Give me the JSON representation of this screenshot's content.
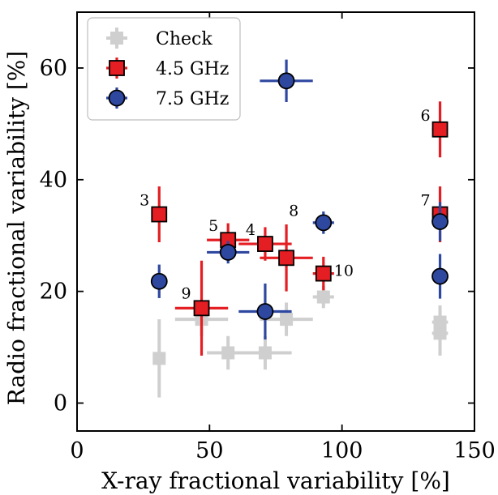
{
  "chart_data": {
    "type": "scatter",
    "xlabel": "X-ray fractional variability [%]",
    "ylabel": "Radio fractional variability [%]",
    "xlim": [
      0,
      150
    ],
    "ylim": [
      -5,
      70
    ],
    "xticks": [
      0,
      50,
      100,
      150
    ],
    "yticks": [
      0,
      20,
      40,
      60
    ],
    "grid": false,
    "legend_position": "top-left",
    "series": [
      {
        "name": "Check",
        "marker": "plus",
        "color": "#cfcfcf",
        "points": [
          {
            "x": 31,
            "y": 8,
            "xerr": 2,
            "yerr": 7
          },
          {
            "x": 47,
            "y": 15,
            "xerr": 10,
            "yerr": 3
          },
          {
            "x": 57,
            "y": 9,
            "xerr": 8,
            "yerr": 3
          },
          {
            "x": 71,
            "y": 9,
            "xerr": 10,
            "yerr": 3
          },
          {
            "x": 79,
            "y": 15,
            "xerr": 10,
            "yerr": 3
          },
          {
            "x": 93,
            "y": 19,
            "xerr": 4,
            "yerr": 2
          },
          {
            "x": 137,
            "y": 12.5,
            "xerr": 3,
            "yerr": 4
          },
          {
            "x": 137,
            "y": 14.5,
            "xerr": 3,
            "yerr": 3
          }
        ]
      },
      {
        "name": "4.5 GHz",
        "marker": "square",
        "color": "#e41e23",
        "points": [
          {
            "x": 31,
            "y": 33.8,
            "xerr": 2,
            "yerr": 5,
            "label": "3"
          },
          {
            "x": 57,
            "y": 29.2,
            "xerr": 8,
            "yerr": 3,
            "label": "5"
          },
          {
            "x": 71,
            "y": 28.5,
            "xerr": 10,
            "yerr": 3,
            "label": "4"
          },
          {
            "x": 79,
            "y": 26,
            "xerr": 10,
            "yerr": 6,
            "label": "8"
          },
          {
            "x": 47,
            "y": 17,
            "xerr": 10,
            "yerr": 8.5,
            "label": "9"
          },
          {
            "x": 93,
            "y": 23.2,
            "xerr": 4,
            "yerr": 3,
            "label": "10"
          },
          {
            "x": 137,
            "y": 49,
            "xerr": 3,
            "yerr": 5,
            "label": "6"
          },
          {
            "x": 137,
            "y": 33.8,
            "xerr": 3,
            "yerr": 5,
            "label": "7"
          }
        ]
      },
      {
        "name": "7.5 GHz",
        "marker": "circle",
        "color": "#2e48a0",
        "points": [
          {
            "x": 79,
            "y": 57.7,
            "xerr": 10,
            "yerr": 3.8
          },
          {
            "x": 31,
            "y": 21.8,
            "xerr": 2,
            "yerr": 3
          },
          {
            "x": 57,
            "y": 27,
            "xerr": 8,
            "yerr": 2
          },
          {
            "x": 71,
            "y": 16.4,
            "xerr": 10,
            "yerr": 5
          },
          {
            "x": 93,
            "y": 32.3,
            "xerr": 4,
            "yerr": 2
          },
          {
            "x": 137,
            "y": 32.5,
            "xerr": 3,
            "yerr": 3.5
          },
          {
            "x": 137,
            "y": 22.7,
            "xerr": 3,
            "yerr": 4
          }
        ]
      }
    ]
  }
}
